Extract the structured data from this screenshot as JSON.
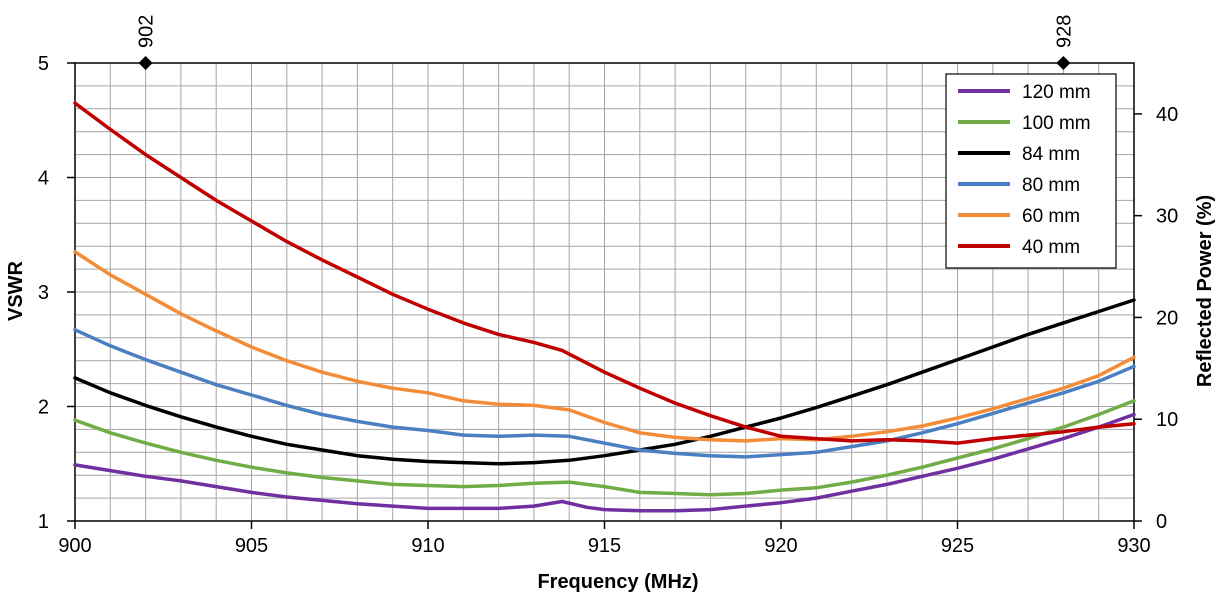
{
  "chart_data": {
    "type": "line",
    "title": "",
    "xlabel": "Frequency (MHz)",
    "ylabel": "VSWR",
    "y2label": "Reflected Power (%)",
    "xlim": [
      900,
      930
    ],
    "ylim": [
      1,
      5
    ],
    "y2lim": [
      0,
      45
    ],
    "x_ticks": [
      "900",
      "905",
      "910",
      "915",
      "920",
      "925",
      "930"
    ],
    "y_ticks": [
      "1",
      "2",
      "3",
      "4",
      "5"
    ],
    "y2_ticks": [
      "0",
      "10",
      "20",
      "30",
      "40"
    ],
    "grid": true,
    "legend_position": "top-right",
    "markers": [
      {
        "x": 902,
        "label": "902"
      },
      {
        "x": 928,
        "label": "928"
      }
    ],
    "series": [
      {
        "name": "120 mm",
        "color": "#7030a0",
        "x": [
          900,
          901,
          902,
          903,
          904,
          905,
          906,
          907,
          908,
          909,
          910,
          911,
          912,
          913,
          913.8,
          914.5,
          915,
          916,
          917,
          918,
          919,
          920,
          921,
          922,
          923,
          924,
          925,
          926,
          927,
          928,
          929,
          930
        ],
        "y": [
          1.49,
          1.44,
          1.39,
          1.35,
          1.3,
          1.25,
          1.21,
          1.18,
          1.15,
          1.13,
          1.11,
          1.11,
          1.11,
          1.13,
          1.17,
          1.12,
          1.1,
          1.09,
          1.09,
          1.1,
          1.13,
          1.16,
          1.2,
          1.26,
          1.32,
          1.39,
          1.46,
          1.54,
          1.63,
          1.72,
          1.82,
          1.93
        ]
      },
      {
        "name": "100 mm",
        "color": "#70ad47",
        "x": [
          900,
          901,
          902,
          903,
          904,
          905,
          906,
          907,
          908,
          909,
          910,
          911,
          912,
          913,
          914,
          915,
          916,
          917,
          918,
          919,
          920,
          921,
          922,
          923,
          924,
          925,
          926,
          927,
          928,
          929,
          930
        ],
        "y": [
          1.88,
          1.77,
          1.68,
          1.6,
          1.53,
          1.47,
          1.42,
          1.38,
          1.35,
          1.32,
          1.31,
          1.3,
          1.31,
          1.33,
          1.34,
          1.3,
          1.25,
          1.24,
          1.23,
          1.24,
          1.27,
          1.29,
          1.34,
          1.4,
          1.47,
          1.55,
          1.63,
          1.72,
          1.82,
          1.93,
          2.05
        ]
      },
      {
        "name": "84 mm",
        "color": "#000000",
        "x": [
          900,
          901,
          902,
          903,
          904,
          905,
          906,
          907,
          908,
          909,
          910,
          911,
          912,
          913,
          914,
          915,
          916,
          917,
          918,
          919,
          920,
          921,
          922,
          923,
          924,
          925,
          926,
          927,
          928,
          929,
          930
        ],
        "y": [
          2.25,
          2.12,
          2.01,
          1.91,
          1.82,
          1.74,
          1.67,
          1.62,
          1.57,
          1.54,
          1.52,
          1.51,
          1.5,
          1.51,
          1.53,
          1.57,
          1.62,
          1.67,
          1.74,
          1.82,
          1.9,
          1.99,
          2.09,
          2.19,
          2.3,
          2.41,
          2.52,
          2.63,
          2.73,
          2.83,
          2.93
        ]
      },
      {
        "name": "80 mm",
        "color": "#4a7fc1",
        "x": [
          900,
          901,
          902,
          903,
          904,
          905,
          906,
          907,
          908,
          909,
          910,
          911,
          912,
          913,
          914,
          915,
          916,
          917,
          918,
          919,
          920,
          921,
          922,
          923,
          924,
          925,
          926,
          927,
          928,
          929,
          930
        ],
        "y": [
          2.67,
          2.53,
          2.41,
          2.3,
          2.19,
          2.1,
          2.01,
          1.93,
          1.87,
          1.82,
          1.79,
          1.75,
          1.74,
          1.75,
          1.74,
          1.68,
          1.62,
          1.59,
          1.57,
          1.56,
          1.58,
          1.6,
          1.65,
          1.7,
          1.77,
          1.85,
          1.94,
          2.03,
          2.12,
          2.22,
          2.35
        ]
      },
      {
        "name": "60 mm",
        "color": "#f28c38",
        "x": [
          900,
          901,
          902,
          903,
          904,
          905,
          906,
          907,
          908,
          909,
          910,
          911,
          912,
          913,
          914,
          915,
          916,
          917,
          918,
          919,
          920,
          921,
          922,
          923,
          924,
          925,
          926,
          927,
          928,
          929,
          930
        ],
        "y": [
          3.35,
          3.15,
          2.98,
          2.81,
          2.66,
          2.52,
          2.4,
          2.3,
          2.22,
          2.16,
          2.12,
          2.05,
          2.02,
          2.01,
          1.97,
          1.86,
          1.77,
          1.73,
          1.71,
          1.7,
          1.72,
          1.71,
          1.74,
          1.78,
          1.83,
          1.9,
          1.98,
          2.07,
          2.16,
          2.27,
          2.43
        ]
      },
      {
        "name": "40 mm",
        "color": "#c00000",
        "x": [
          900,
          901,
          902,
          903,
          904,
          905,
          906,
          907,
          908,
          909,
          910,
          911,
          912,
          913,
          913.8,
          915,
          916,
          917,
          918,
          919,
          920,
          921,
          922,
          923,
          924,
          925,
          926,
          927,
          928,
          929,
          930
        ],
        "y": [
          4.65,
          4.42,
          4.2,
          4.0,
          3.8,
          3.62,
          3.44,
          3.28,
          3.13,
          2.98,
          2.85,
          2.73,
          2.63,
          2.56,
          2.49,
          2.3,
          2.16,
          2.03,
          1.92,
          1.82,
          1.74,
          1.72,
          1.7,
          1.71,
          1.7,
          1.68,
          1.72,
          1.75,
          1.78,
          1.82,
          1.85
        ]
      }
    ]
  }
}
